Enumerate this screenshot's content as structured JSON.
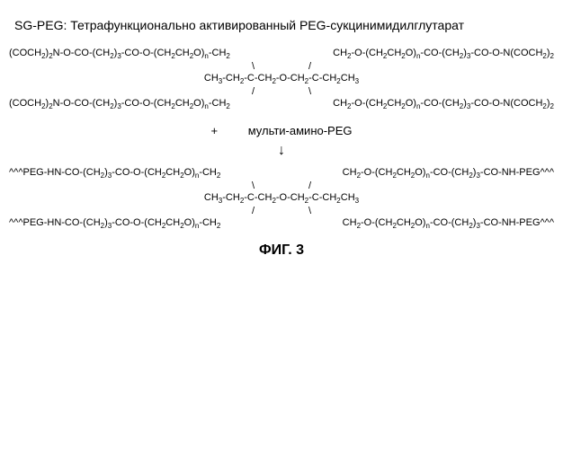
{
  "title": "SG-PEG: Тетрафункционально активированный PEG-сукцинимидилглутарат",
  "structure1": {
    "arm_tl": "(COCH₂)₂N-O-CO-(CH₂)₃-CO-O-(CH₂CH₂O)n-CH₂",
    "arm_tr": "CH₂-O-(CH₂CH₂O)n-CO-(CH₂)₃-CO-O-N(COCH₂)₂",
    "arm_bl": "(COCH₂)₂N-O-CO-(CH₂)₃-CO-O-(CH₂CH₂O)n-CH₂",
    "arm_br": "CH₂-O-(CH₂CH₂O)n-CO-(CH₂)₃-CO-O-N(COCH₂)₂",
    "core": "CH₃-CH₂-C-CH₂-O-CH₂-C-CH₂CH₃"
  },
  "reaction": {
    "plus": "+",
    "reagent": "мульти-амино-PEG",
    "arrow": "↓"
  },
  "structure2": {
    "arm_tl": "^^^PEG-HN-CO-(CH₂)₃-CO-O-(CH₂CH₂O)n-CH₂",
    "arm_tr": "CH₂-O-(CH₂CH₂O)n-CO-(CH₂)₃-CO-NH-PEG^^^",
    "arm_bl": "^^^PEG-HN-CO-(CH₂)₃-CO-O-(CH₂CH₂O)n-CH₂",
    "arm_br": "CH₂-O-(CH₂CH₂O)n-CO-(CH₂)₃-CO-NH-PEG^^^",
    "core": "CH₃-CH₂-C-CH₂-O-CH₂-C-CH₂CH₃"
  },
  "figure_label": "ФИГ. 3",
  "style": {
    "font_family": "Arial",
    "text_color": "#000000",
    "background": "#ffffff",
    "title_fontsize": 14,
    "formula_fontsize": 11,
    "figlabel_fontsize": 16
  }
}
